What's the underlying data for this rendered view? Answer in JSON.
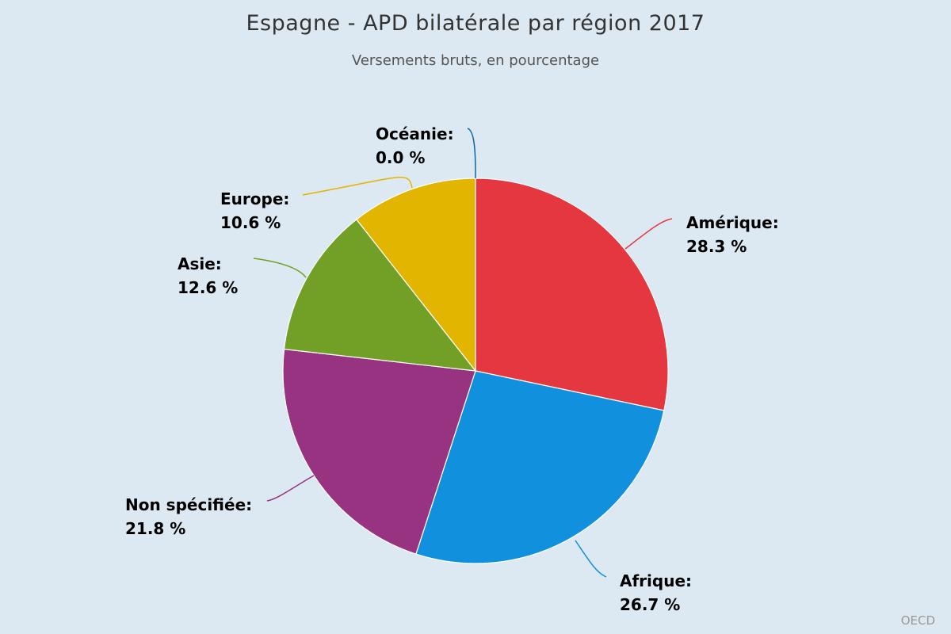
{
  "chart_data": {
    "type": "pie",
    "title": "Espagne - APD bilatérale par région 2017",
    "subtitle": "Versements bruts, en pourcentage",
    "slices": [
      {
        "name": "Amérique",
        "value": 28.3,
        "value_label": "28.3 %",
        "color": "#e5373f"
      },
      {
        "name": "Afrique",
        "value": 26.7,
        "value_label": "26.7 %",
        "color": "#1090dd"
      },
      {
        "name": "Non spécifiée",
        "value": 21.8,
        "value_label": "21.8 %",
        "color": "#973381"
      },
      {
        "name": "Asie",
        "value": 12.6,
        "value_label": "12.6 %",
        "color": "#72a026"
      },
      {
        "name": "Europe",
        "value": 10.6,
        "value_label": "10.6 %",
        "color": "#e2b500"
      },
      {
        "name": "Océanie",
        "value": 0.0,
        "value_label": "0.0 %",
        "color": "#0b68af"
      }
    ],
    "credit": "OECD"
  }
}
